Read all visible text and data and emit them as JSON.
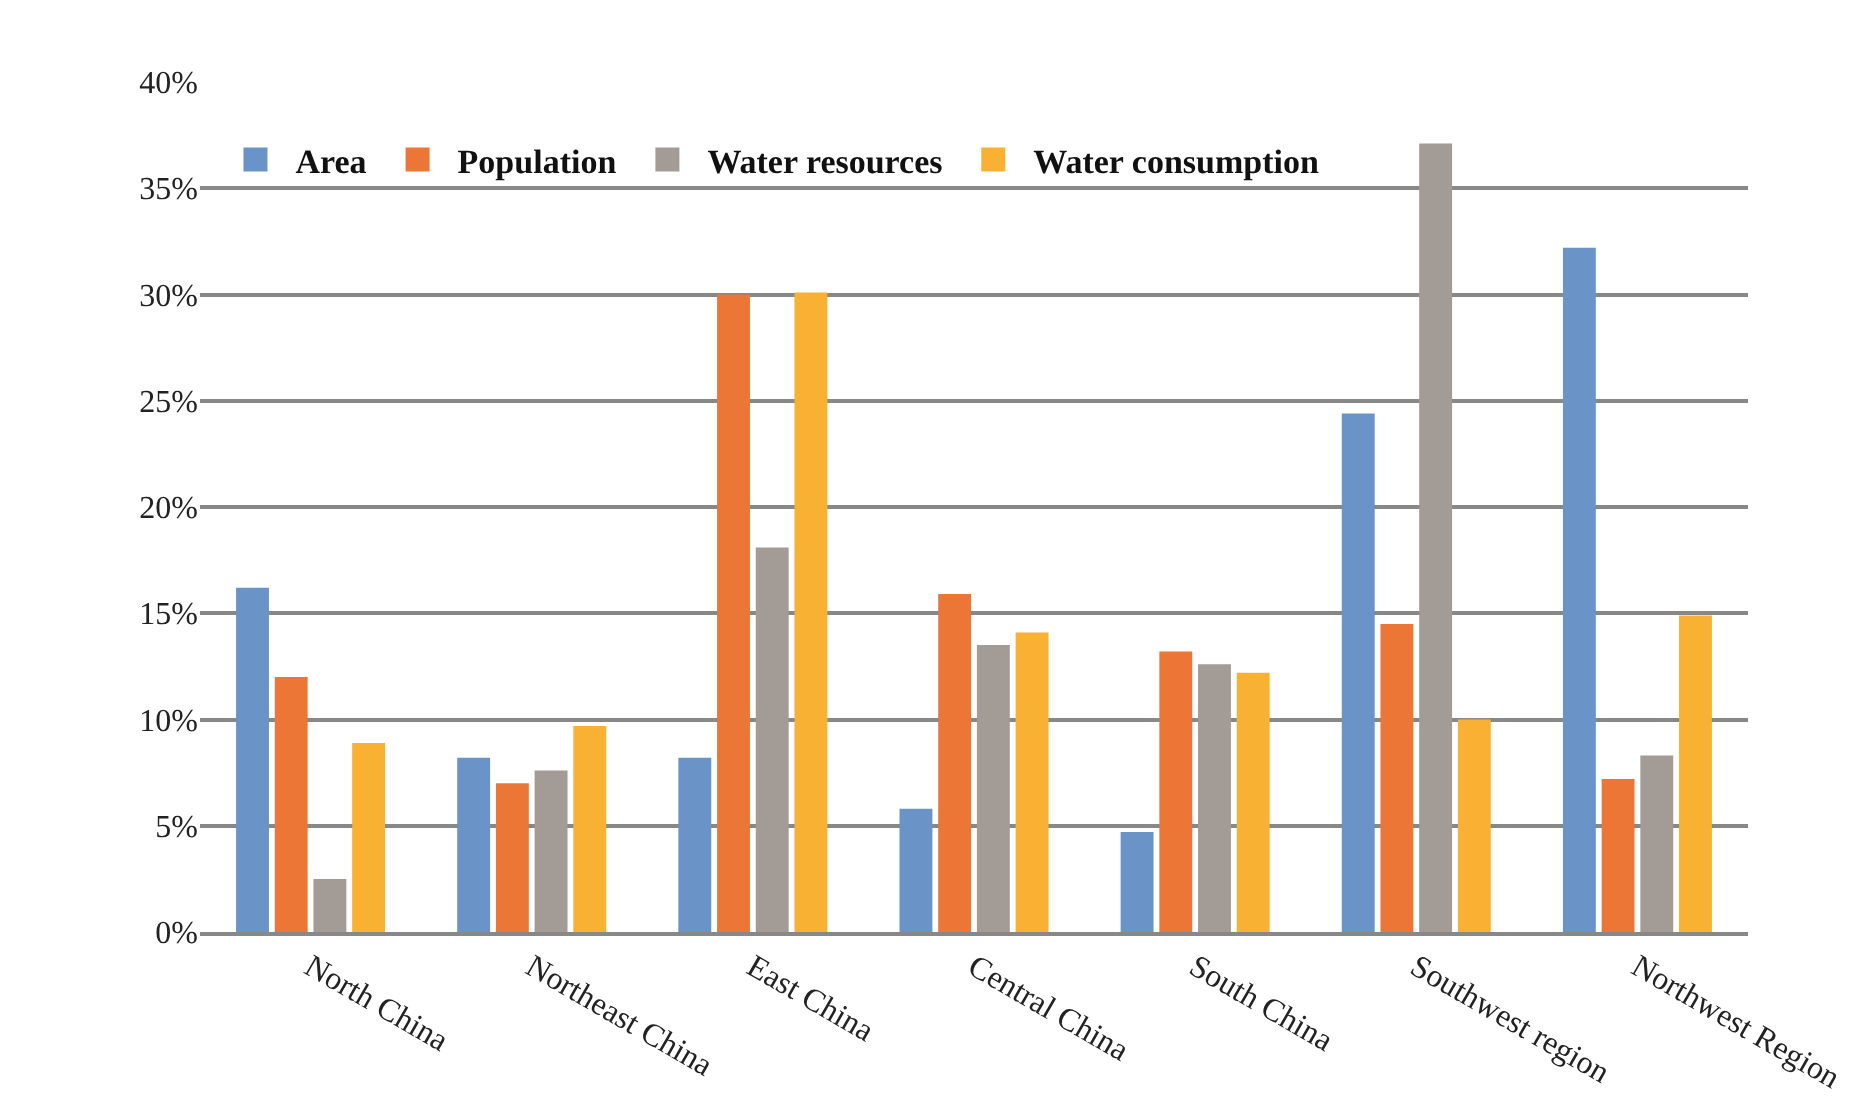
{
  "chart_data": {
    "type": "bar",
    "categories": [
      "North China",
      "Northeast China",
      "East China",
      "Central China",
      "South China",
      "Southwest region",
      "Northwest Region"
    ],
    "series": [
      {
        "name": "Area",
        "color": "#6a93c8",
        "values": [
          16.2,
          8.2,
          8.2,
          5.8,
          4.7,
          24.4,
          32.2
        ]
      },
      {
        "name": "Population",
        "color": "#ec7636",
        "values": [
          12.0,
          7.0,
          30.0,
          15.9,
          13.2,
          14.5,
          7.2
        ]
      },
      {
        "name": "Water resources",
        "color": "#a39b96",
        "values": [
          2.5,
          7.6,
          18.1,
          13.5,
          12.6,
          37.1,
          8.3
        ]
      },
      {
        "name": "Water consumption",
        "color": "#f8b132",
        "values": [
          8.9,
          9.7,
          30.1,
          14.1,
          12.2,
          10.0,
          14.9
        ]
      }
    ],
    "ylim": [
      0,
      40
    ],
    "yticks": [
      {
        "value": 0,
        "label": "0%"
      },
      {
        "value": 5,
        "label": "5%"
      },
      {
        "value": 10,
        "label": "10%"
      },
      {
        "value": 15,
        "label": "15%"
      },
      {
        "value": 20,
        "label": "20%"
      },
      {
        "value": 25,
        "label": "25%"
      },
      {
        "value": 30,
        "label": "30%"
      },
      {
        "value": 35,
        "label": "35%"
      },
      {
        "value": 40,
        "label": "40%"
      }
    ],
    "grid": "y",
    "legend": "top left"
  }
}
